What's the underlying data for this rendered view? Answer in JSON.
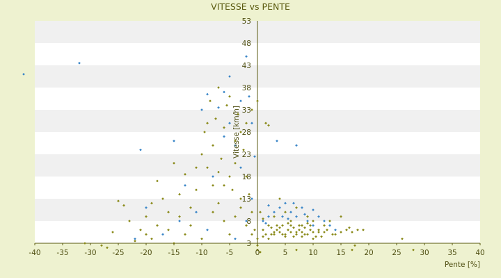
{
  "chart_data": {
    "type": "scatter",
    "title": "VITESSE vs PENTE",
    "xlabel": "Pente [%]",
    "ylabel": "Vitesse [km/h]",
    "xlim": [
      -40,
      40
    ],
    "ylim": [
      3,
      53
    ],
    "x_ticks": [
      "-40",
      "-35",
      "-30",
      "-25",
      "-20",
      "-15",
      "-10",
      "-5",
      "0",
      "5",
      "10",
      "15",
      "20",
      "25",
      "30",
      "35",
      "40"
    ],
    "y_ticks": [
      "3",
      "8",
      "13",
      "18",
      "23",
      "28",
      "33",
      "38",
      "43",
      "48",
      "53"
    ],
    "grid": "horizontal bands",
    "legend": "none",
    "colors": {
      "background": "#eef2d0",
      "band_light": "#ffffff",
      "band_dark": "#f0f0f0",
      "text": "#4d4d10",
      "axis": "#5a5a10",
      "series_a": "#3a86c8",
      "series_b": "#8a8a1a"
    },
    "series": [
      {
        "values": [
          [
            -42,
            41
          ],
          [
            -32,
            43.5
          ],
          [
            -21,
            24
          ],
          [
            -15,
            26
          ],
          [
            -10,
            33
          ],
          [
            -9,
            36.5
          ],
          [
            -7,
            33.5
          ],
          [
            -6,
            37
          ],
          [
            -5,
            40.5
          ],
          [
            -3,
            35
          ],
          [
            -2,
            45
          ],
          [
            -1.5,
            36
          ],
          [
            -1,
            30
          ],
          [
            -0.5,
            22.5
          ],
          [
            -1,
            13
          ],
          [
            -2,
            8
          ],
          [
            -5,
            30
          ],
          [
            -8,
            18
          ],
          [
            -4,
            25
          ],
          [
            -3,
            20
          ],
          [
            -6,
            27
          ],
          [
            -11,
            10
          ],
          [
            -13,
            16
          ],
          [
            -20,
            11
          ],
          [
            -22,
            4
          ],
          [
            -17,
            5
          ],
          [
            -14,
            8
          ],
          [
            -9,
            6
          ],
          [
            -4,
            4
          ],
          [
            1,
            8
          ],
          [
            2,
            9
          ],
          [
            3,
            10
          ],
          [
            4,
            11
          ],
          [
            5,
            12
          ],
          [
            6,
            10
          ],
          [
            7,
            9
          ],
          [
            8,
            11
          ],
          [
            9,
            8
          ],
          [
            10,
            7
          ],
          [
            11,
            9
          ],
          [
            12,
            8
          ],
          [
            13,
            7
          ],
          [
            14,
            6
          ],
          [
            3.5,
            26
          ],
          [
            7,
            25
          ],
          [
            2,
            11.5
          ],
          [
            4.5,
            9
          ],
          [
            6.5,
            12
          ],
          [
            10,
            10.5
          ],
          [
            1.5,
            7.5
          ],
          [
            5.5,
            8.5
          ],
          [
            8.5,
            9.5
          ]
        ]
      },
      {
        "values": [
          [
            -31,
            3
          ],
          [
            -28,
            2.5
          ],
          [
            -27,
            2
          ],
          [
            -26,
            5.5
          ],
          [
            -25,
            12.5
          ],
          [
            -24,
            11.5
          ],
          [
            -23,
            8
          ],
          [
            -22,
            3.5
          ],
          [
            -21,
            6
          ],
          [
            -20,
            9
          ],
          [
            -19,
            4
          ],
          [
            -18,
            17
          ],
          [
            -17,
            13
          ],
          [
            -16,
            6
          ],
          [
            -15,
            21
          ],
          [
            -14,
            9
          ],
          [
            -13,
            18.5
          ],
          [
            -12,
            11
          ],
          [
            -11,
            20
          ],
          [
            -10,
            23
          ],
          [
            -9.5,
            28
          ],
          [
            -9,
            30
          ],
          [
            -8.5,
            35
          ],
          [
            -8,
            25
          ],
          [
            -7.5,
            31
          ],
          [
            -7,
            38
          ],
          [
            -6.5,
            22
          ],
          [
            -6,
            29
          ],
          [
            -5.5,
            34
          ],
          [
            -5,
            36
          ],
          [
            -4.5,
            15
          ],
          [
            -4,
            26
          ],
          [
            -3.5,
            32
          ],
          [
            -3,
            28
          ],
          [
            -2.5,
            24
          ],
          [
            -2,
            18
          ],
          [
            -1.5,
            14
          ],
          [
            -1,
            10
          ],
          [
            -0.5,
            6
          ],
          [
            0,
            4
          ],
          [
            -12,
            7
          ],
          [
            -10,
            4
          ],
          [
            -8,
            10
          ],
          [
            -7,
            12
          ],
          [
            -6,
            8
          ],
          [
            -5,
            5
          ],
          [
            -4,
            9
          ],
          [
            -3,
            11
          ],
          [
            -2,
            7
          ],
          [
            -1,
            5
          ],
          [
            -11,
            15
          ],
          [
            -13,
            5
          ],
          [
            -15,
            3
          ],
          [
            -16,
            10
          ],
          [
            -18,
            7
          ],
          [
            -19,
            12
          ],
          [
            -20,
            5
          ],
          [
            -14,
            14
          ],
          [
            -9,
            20
          ],
          [
            -8,
            16
          ],
          [
            -7,
            19
          ],
          [
            -6,
            16
          ],
          [
            -5,
            18
          ],
          [
            -4,
            21
          ],
          [
            -3,
            13
          ],
          [
            -2,
            30
          ],
          [
            -1,
            33
          ],
          [
            0,
            35
          ],
          [
            0,
            2.5
          ],
          [
            0,
            1.5
          ],
          [
            0.5,
            10
          ],
          [
            1,
            6
          ],
          [
            1.5,
            5
          ],
          [
            2,
            7
          ],
          [
            2.5,
            6.5
          ],
          [
            3,
            5
          ],
          [
            3.5,
            6
          ],
          [
            4,
            5.5
          ],
          [
            4.5,
            7
          ],
          [
            5,
            5
          ],
          [
            5.5,
            6
          ],
          [
            6,
            5.5
          ],
          [
            6.5,
            6.5
          ],
          [
            7,
            5
          ],
          [
            7.5,
            6
          ],
          [
            8,
            5.5
          ],
          [
            8.5,
            6.5
          ],
          [
            9,
            5
          ],
          [
            9.5,
            6
          ],
          [
            10,
            5.5
          ],
          [
            10.5,
            4.5
          ],
          [
            11,
            5.5
          ],
          [
            11.5,
            4.5
          ],
          [
            12,
            5.5
          ],
          [
            13,
            8
          ],
          [
            14,
            5
          ],
          [
            15,
            9
          ],
          [
            16,
            6
          ],
          [
            17,
            5.5
          ],
          [
            18,
            6
          ],
          [
            1.5,
            30
          ],
          [
            2,
            29.5
          ],
          [
            3,
            9
          ],
          [
            4,
            13
          ],
          [
            5,
            10
          ],
          [
            6,
            8
          ],
          [
            7,
            11
          ],
          [
            8,
            7
          ],
          [
            9,
            9
          ],
          [
            10,
            8
          ],
          [
            2,
            4
          ],
          [
            3,
            5.5
          ],
          [
            4,
            6.5
          ],
          [
            5,
            4.5
          ],
          [
            6,
            7
          ],
          [
            7,
            5.5
          ],
          [
            8,
            4.5
          ],
          [
            9,
            7.5
          ],
          [
            10,
            4
          ],
          [
            12,
            7
          ],
          [
            26,
            4
          ],
          [
            28,
            1.5
          ],
          [
            17.5,
            2.5
          ],
          [
            17,
            1.5
          ],
          [
            7,
            1.5
          ],
          [
            0.5,
            1
          ],
          [
            2.5,
            5
          ],
          [
            3.5,
            7
          ],
          [
            4.5,
            5
          ],
          [
            5.5,
            7.5
          ],
          [
            6.5,
            4.5
          ],
          [
            7.5,
            7
          ],
          [
            8.5,
            5
          ],
          [
            9.5,
            7
          ],
          [
            11,
            6
          ],
          [
            12.5,
            6
          ],
          [
            13.5,
            5
          ],
          [
            15,
            5.5
          ],
          [
            16.5,
            6.5
          ],
          [
            19,
            6
          ],
          [
            1,
            4.5
          ],
          [
            1,
            8.5
          ]
        ]
      }
    ]
  }
}
